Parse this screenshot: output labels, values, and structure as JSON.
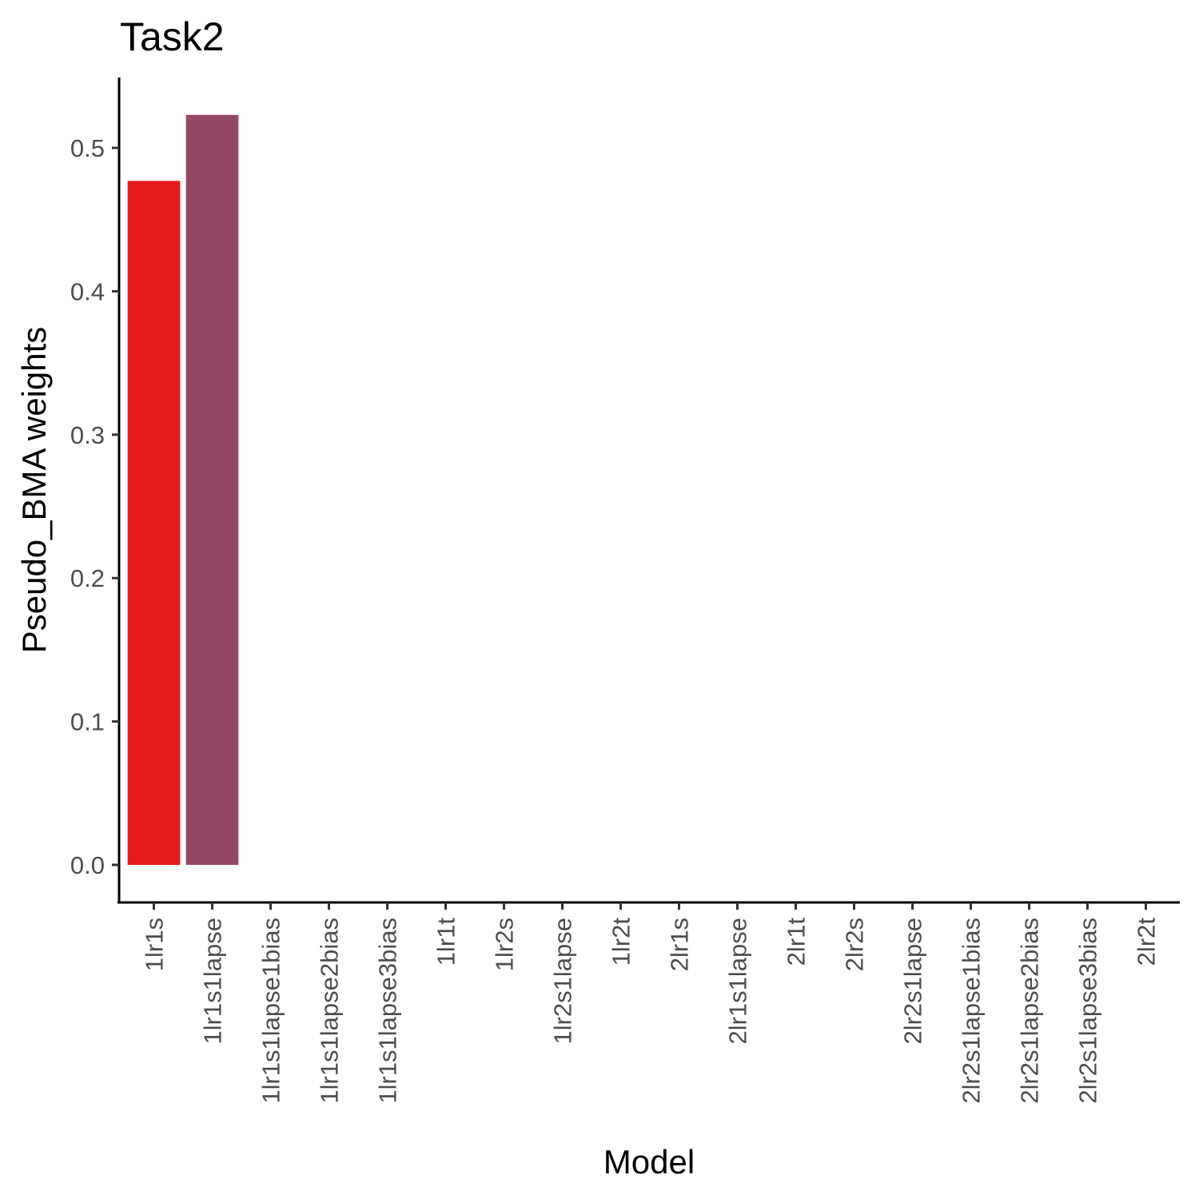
{
  "chart_data": {
    "type": "bar",
    "title": "Task2",
    "xlabel": "Model",
    "ylabel": "Pseudo_BMA weights",
    "categories": [
      "1lr1s",
      "1lr1s1lapse",
      "1lr1s1lapse1bias",
      "1lr1s1lapse2bias",
      "1lr1s1lapse3bias",
      "1lr1t",
      "1lr2s",
      "1lr2s1lapse",
      "1lr2t",
      "2lr1s",
      "2lr1s1lapse",
      "2lr1t",
      "2lr2s",
      "2lr2s1lapse",
      "2lr2s1lapse1bias",
      "2lr2s1lapse2bias",
      "2lr2s1lapse3bias",
      "2lr2t"
    ],
    "values": [
      0.477,
      0.523,
      0,
      0,
      0,
      0,
      0,
      0,
      0,
      0,
      0,
      0,
      0,
      0,
      0,
      0,
      0,
      0
    ],
    "colors": [
      "#e41a1c",
      "#924764"
    ],
    "yticks": [
      "0.0",
      "0.1",
      "0.2",
      "0.3",
      "0.4",
      "0.5"
    ],
    "ylim": [
      -0.025,
      0.548
    ],
    "grid": false,
    "legend": "none"
  }
}
